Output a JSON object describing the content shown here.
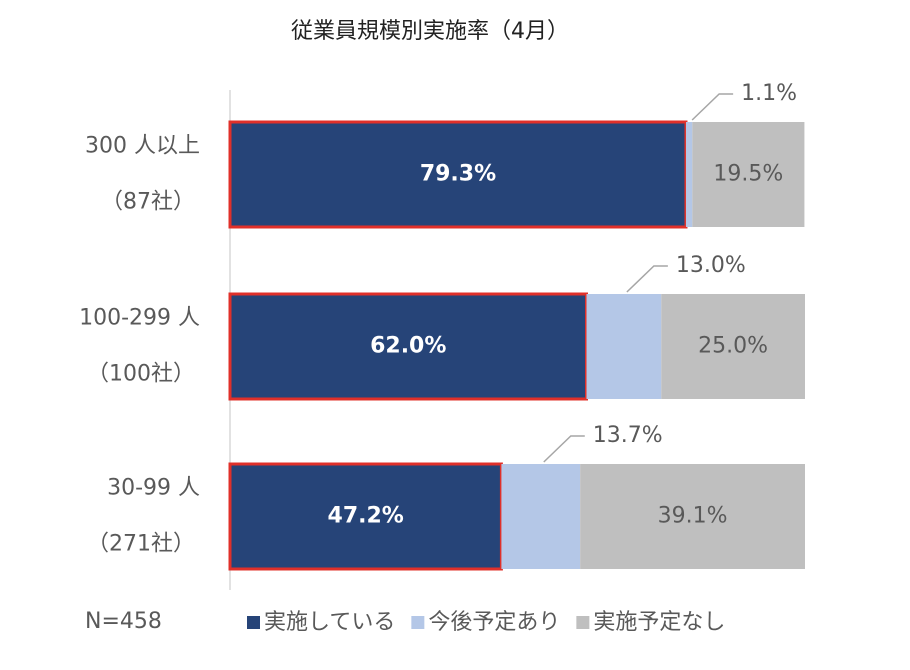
{
  "chart_data": {
    "type": "stacked_bar_horizontal",
    "title": "従業員規模別実施率（4月）",
    "categories": [
      "300 人以上",
      "100-299 人",
      "30-99 人"
    ],
    "category_sublabels": [
      "（87社）",
      "（100社）",
      "（271社）"
    ],
    "note": "N=458",
    "xlim": [
      0,
      100
    ],
    "series": [
      {
        "name": "実施している",
        "color": "#264478",
        "border_color": "#e0302a",
        "values": [
          79.3,
          62.0,
          47.2
        ],
        "value_labels": [
          "79.3%",
          "62.0%",
          "47.2%"
        ]
      },
      {
        "name": "今後予定あり",
        "color": "#b4c7e7",
        "values": [
          1.1,
          13.0,
          13.7
        ],
        "value_labels": [
          "1.1%",
          "13.0%",
          "13.7%"
        ]
      },
      {
        "name": "実施予定なし",
        "color": "#bfbfbf",
        "values": [
          19.5,
          25.0,
          39.1
        ],
        "value_labels": [
          "19.5%",
          "25.0%",
          "39.1%"
        ]
      }
    ]
  }
}
